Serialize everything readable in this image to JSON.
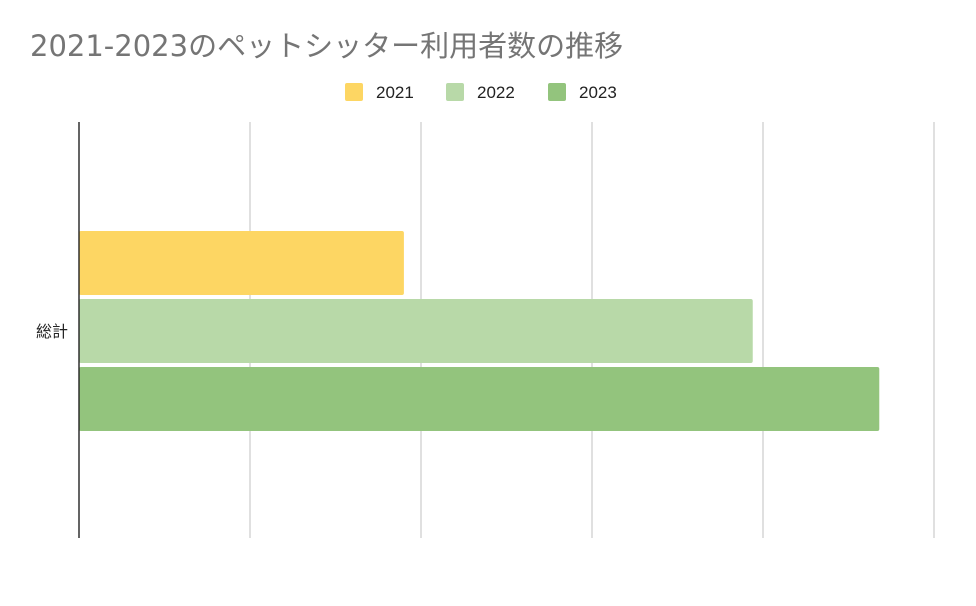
{
  "chart_data": {
    "type": "bar",
    "orientation": "horizontal",
    "title": "2021-2023のペットシッター利用者数の推移",
    "categories": [
      "総計"
    ],
    "series": [
      {
        "name": "2021",
        "values": [
          190
        ],
        "color": "#FDD663"
      },
      {
        "name": "2022",
        "values": [
          394
        ],
        "color": "#B8D9A8"
      },
      {
        "name": "2023",
        "values": [
          468
        ],
        "color": "#93C47D"
      }
    ],
    "xlim": [
      0,
      500
    ],
    "x_gridlines": [
      0,
      100,
      200,
      300,
      400,
      500
    ],
    "grid": true,
    "legend_position": "top",
    "xlabel": "",
    "ylabel": ""
  }
}
